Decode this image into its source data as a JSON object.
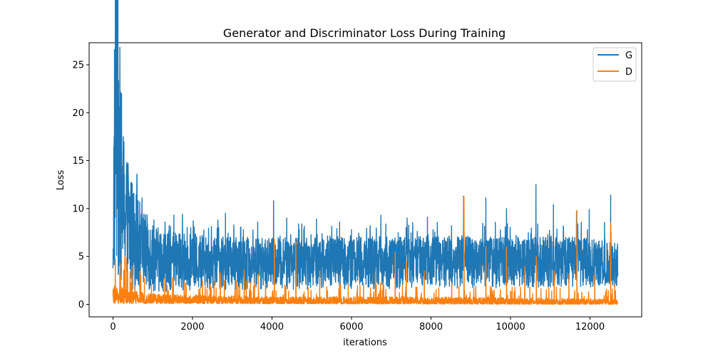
{
  "chart_data": {
    "type": "line",
    "title": "Generator and Discriminator Loss During Training",
    "xlabel": "iterations",
    "ylabel": "Loss",
    "xlim": [
      -600,
      13300
    ],
    "ylim": [
      -1.3,
      27.3
    ],
    "xticks": [
      0,
      2000,
      4000,
      6000,
      8000,
      10000,
      12000
    ],
    "xtick_labels": [
      "0",
      "2000",
      "4000",
      "6000",
      "8000",
      "10000",
      "12000"
    ],
    "yticks": [
      0,
      5,
      10,
      15,
      20,
      25
    ],
    "ytick_labels": [
      "0",
      "5",
      "10",
      "15",
      "20",
      "25"
    ],
    "grid": false,
    "legend_position": "top-right",
    "x_max": 12700,
    "series": [
      {
        "name": "G",
        "color": "#1f77b4",
        "anchors": [
          [
            0,
            6.0
          ],
          [
            50,
            22.0
          ],
          [
            100,
            26.0
          ],
          [
            150,
            19.0
          ],
          [
            250,
            12.0
          ],
          [
            400,
            9.0
          ],
          [
            700,
            6.5
          ],
          [
            1200,
            5.0
          ],
          [
            3000,
            4.5
          ],
          [
            8000,
            4.6
          ],
          [
            12700,
            4.5
          ]
        ],
        "low_band": [
          [
            0,
            2.0
          ],
          [
            700,
            1.3
          ],
          [
            3000,
            1.5
          ],
          [
            12700,
            1.8
          ]
        ],
        "spikes": [
          [
            50,
            22.5
          ],
          [
            100,
            26.1
          ],
          [
            120,
            25.3
          ],
          [
            170,
            17.9
          ],
          [
            340,
            14.5
          ],
          [
            380,
            14.7
          ],
          [
            730,
            11.1
          ],
          [
            1030,
            8.8
          ],
          [
            1310,
            8.6
          ],
          [
            1750,
            9.4
          ],
          [
            2640,
            8.8
          ],
          [
            2830,
            9.5
          ],
          [
            3640,
            8.6
          ],
          [
            4040,
            10.8
          ],
          [
            4370,
            9.0
          ],
          [
            5120,
            8.9
          ],
          [
            5700,
            8.6
          ],
          [
            6470,
            8.2
          ],
          [
            6740,
            9.3
          ],
          [
            7400,
            9.0
          ],
          [
            7910,
            9.1
          ],
          [
            8820,
            11.3
          ],
          [
            9380,
            11.1
          ],
          [
            9900,
            10.0
          ],
          [
            10640,
            12.5
          ],
          [
            11080,
            10.4
          ],
          [
            11660,
            9.7
          ],
          [
            11980,
            9.9
          ],
          [
            12520,
            11.4
          ]
        ]
      },
      {
        "name": "D",
        "color": "#ff7f0e",
        "anchors": [
          [
            0,
            1.3
          ],
          [
            100,
            1.3
          ],
          [
            300,
            1.0
          ],
          [
            1000,
            0.7
          ],
          [
            4000,
            0.5
          ],
          [
            8000,
            0.5
          ],
          [
            12700,
            0.35
          ]
        ],
        "low_band": [
          [
            0,
            0.1
          ],
          [
            12700,
            0.0
          ]
        ],
        "spikes": [
          [
            60,
            4.7
          ],
          [
            300,
            5.0
          ],
          [
            340,
            4.8
          ],
          [
            480,
            3.8
          ],
          [
            700,
            3.0
          ],
          [
            1500,
            2.8
          ],
          [
            2700,
            3.3
          ],
          [
            3300,
            3.6
          ],
          [
            3660,
            3.2
          ],
          [
            4060,
            6.8
          ],
          [
            4600,
            6.5
          ],
          [
            5200,
            3.5
          ],
          [
            5700,
            3.0
          ],
          [
            6600,
            3.3
          ],
          [
            7100,
            5.5
          ],
          [
            7380,
            4.5
          ],
          [
            7830,
            3.5
          ],
          [
            8830,
            11.2
          ],
          [
            9380,
            6.0
          ],
          [
            9900,
            6.0
          ],
          [
            10360,
            4.0
          ],
          [
            10650,
            5.0
          ],
          [
            11100,
            3.5
          ],
          [
            11470,
            3.2
          ],
          [
            11670,
            9.8
          ],
          [
            12120,
            3.0
          ],
          [
            12520,
            8.5
          ],
          [
            12620,
            2.0
          ]
        ]
      }
    ]
  }
}
